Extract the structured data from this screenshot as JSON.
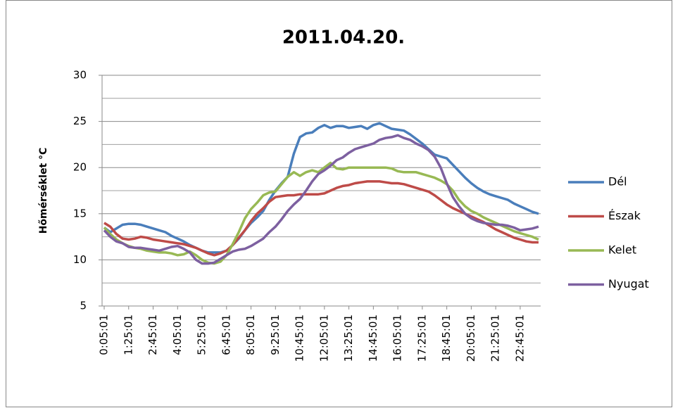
{
  "chart_data": {
    "type": "line",
    "title": "2011.04.20.",
    "y_label": "Hőmérséklet °C",
    "categories": [
      "0:05:01",
      null,
      null,
      null,
      "1:25:01",
      null,
      null,
      null,
      "2:45:01",
      null,
      null,
      null,
      "4:05:01",
      null,
      null,
      null,
      "5:25:01",
      null,
      null,
      null,
      "6:45:01",
      null,
      null,
      null,
      "8:05:01",
      null,
      null,
      null,
      "9:25:01",
      null,
      null,
      null,
      "10:45:01",
      null,
      null,
      null,
      "12:05:01",
      null,
      null,
      null,
      "13:25:01",
      null,
      null,
      null,
      "14:45:01",
      null,
      null,
      null,
      "16:05:01",
      null,
      null,
      null,
      "17:25:01",
      null,
      null,
      null,
      "18:45:01",
      null,
      null,
      null,
      "20:05:01",
      null,
      null,
      null,
      "21:25:01",
      null,
      null,
      null,
      "22:45:01",
      null,
      null,
      null
    ],
    "series": [
      {
        "name": "Dél",
        "color": "#4a7ebb",
        "values": [
          13.5,
          13.0,
          13.4,
          13.8,
          13.9,
          13.9,
          13.8,
          13.6,
          13.4,
          13.2,
          13.0,
          12.6,
          12.3,
          12.0,
          11.6,
          11.3,
          11.0,
          10.8,
          10.8,
          10.8,
          11.0,
          11.6,
          12.3,
          13.2,
          14.0,
          14.6,
          15.3,
          16.5,
          17.5,
          18.3,
          19.0,
          21.5,
          23.3,
          23.7,
          23.8,
          24.3,
          24.6,
          24.3,
          24.5,
          24.5,
          24.3,
          24.4,
          24.5,
          24.2,
          24.6,
          24.8,
          24.5,
          24.2,
          24.1,
          24.0,
          23.6,
          23.1,
          22.6,
          22.0,
          21.4,
          21.2,
          21.0,
          20.3,
          19.6,
          18.9,
          18.3,
          17.8,
          17.4,
          17.1,
          16.9,
          16.7,
          16.5,
          16.1,
          15.8,
          15.5,
          15.2,
          15.0
        ]
      },
      {
        "name": "Észak",
        "color": "#be4b48",
        "values": [
          14.0,
          13.6,
          12.8,
          12.3,
          12.2,
          12.3,
          12.5,
          12.4,
          12.2,
          12.1,
          12.0,
          11.9,
          11.8,
          11.7,
          11.5,
          11.3,
          11.0,
          10.7,
          10.5,
          10.7,
          11.0,
          11.6,
          12.4,
          13.2,
          14.2,
          15.0,
          15.6,
          16.3,
          16.8,
          16.9,
          17.0,
          17.0,
          17.1,
          17.1,
          17.1,
          17.1,
          17.2,
          17.5,
          17.8,
          18.0,
          18.1,
          18.3,
          18.4,
          18.5,
          18.5,
          18.5,
          18.4,
          18.3,
          18.3,
          18.2,
          18.0,
          17.8,
          17.6,
          17.4,
          17.0,
          16.5,
          16.0,
          15.6,
          15.3,
          15.0,
          14.7,
          14.4,
          14.1,
          13.7,
          13.3,
          13.0,
          12.7,
          12.4,
          12.2,
          12.0,
          11.9,
          11.9
        ]
      },
      {
        "name": "Kelet",
        "color": "#98b954",
        "values": [
          13.5,
          12.8,
          12.2,
          11.8,
          11.5,
          11.3,
          11.2,
          11.0,
          10.9,
          10.8,
          10.8,
          10.7,
          10.5,
          10.6,
          10.9,
          10.5,
          10.0,
          9.7,
          9.6,
          9.8,
          10.5,
          11.7,
          13.0,
          14.5,
          15.5,
          16.2,
          17.0,
          17.3,
          17.4,
          18.2,
          19.0,
          19.5,
          19.1,
          19.5,
          19.7,
          19.5,
          20.0,
          20.5,
          19.9,
          19.8,
          20.0,
          20.0,
          20.0,
          20.0,
          20.0,
          20.0,
          20.0,
          19.9,
          19.6,
          19.5,
          19.5,
          19.5,
          19.3,
          19.1,
          18.9,
          18.6,
          18.2,
          17.5,
          16.5,
          15.8,
          15.3,
          15.0,
          14.6,
          14.3,
          14.0,
          13.7,
          13.4,
          13.1,
          12.9,
          12.7,
          12.5,
          12.2
        ]
      },
      {
        "name": "Nyugat",
        "color": "#7d60a0",
        "values": [
          13.2,
          12.5,
          12.0,
          11.8,
          11.4,
          11.3,
          11.3,
          11.2,
          11.1,
          11.0,
          11.2,
          11.4,
          11.5,
          11.2,
          10.8,
          10.0,
          9.6,
          9.6,
          9.7,
          10.1,
          10.5,
          10.9,
          11.1,
          11.2,
          11.5,
          11.9,
          12.3,
          13.0,
          13.6,
          14.4,
          15.3,
          16.0,
          16.6,
          17.5,
          18.5,
          19.3,
          19.7,
          20.2,
          20.8,
          21.1,
          21.6,
          22.0,
          22.2,
          22.4,
          22.6,
          23.0,
          23.2,
          23.3,
          23.5,
          23.2,
          23.0,
          22.6,
          22.3,
          21.9,
          21.2,
          20.0,
          18.3,
          16.8,
          15.8,
          15.0,
          14.5,
          14.2,
          14.0,
          13.9,
          13.8,
          13.8,
          13.7,
          13.5,
          13.2,
          13.3,
          13.4,
          13.6
        ]
      }
    ],
    "ylim": [
      5,
      30
    ],
    "yticks": [
      5,
      10,
      15,
      20,
      25,
      30
    ],
    "minor_yticks": [
      7.5,
      12.5,
      17.5,
      22.5,
      27.5
    ],
    "grid": true,
    "legend": "right"
  }
}
